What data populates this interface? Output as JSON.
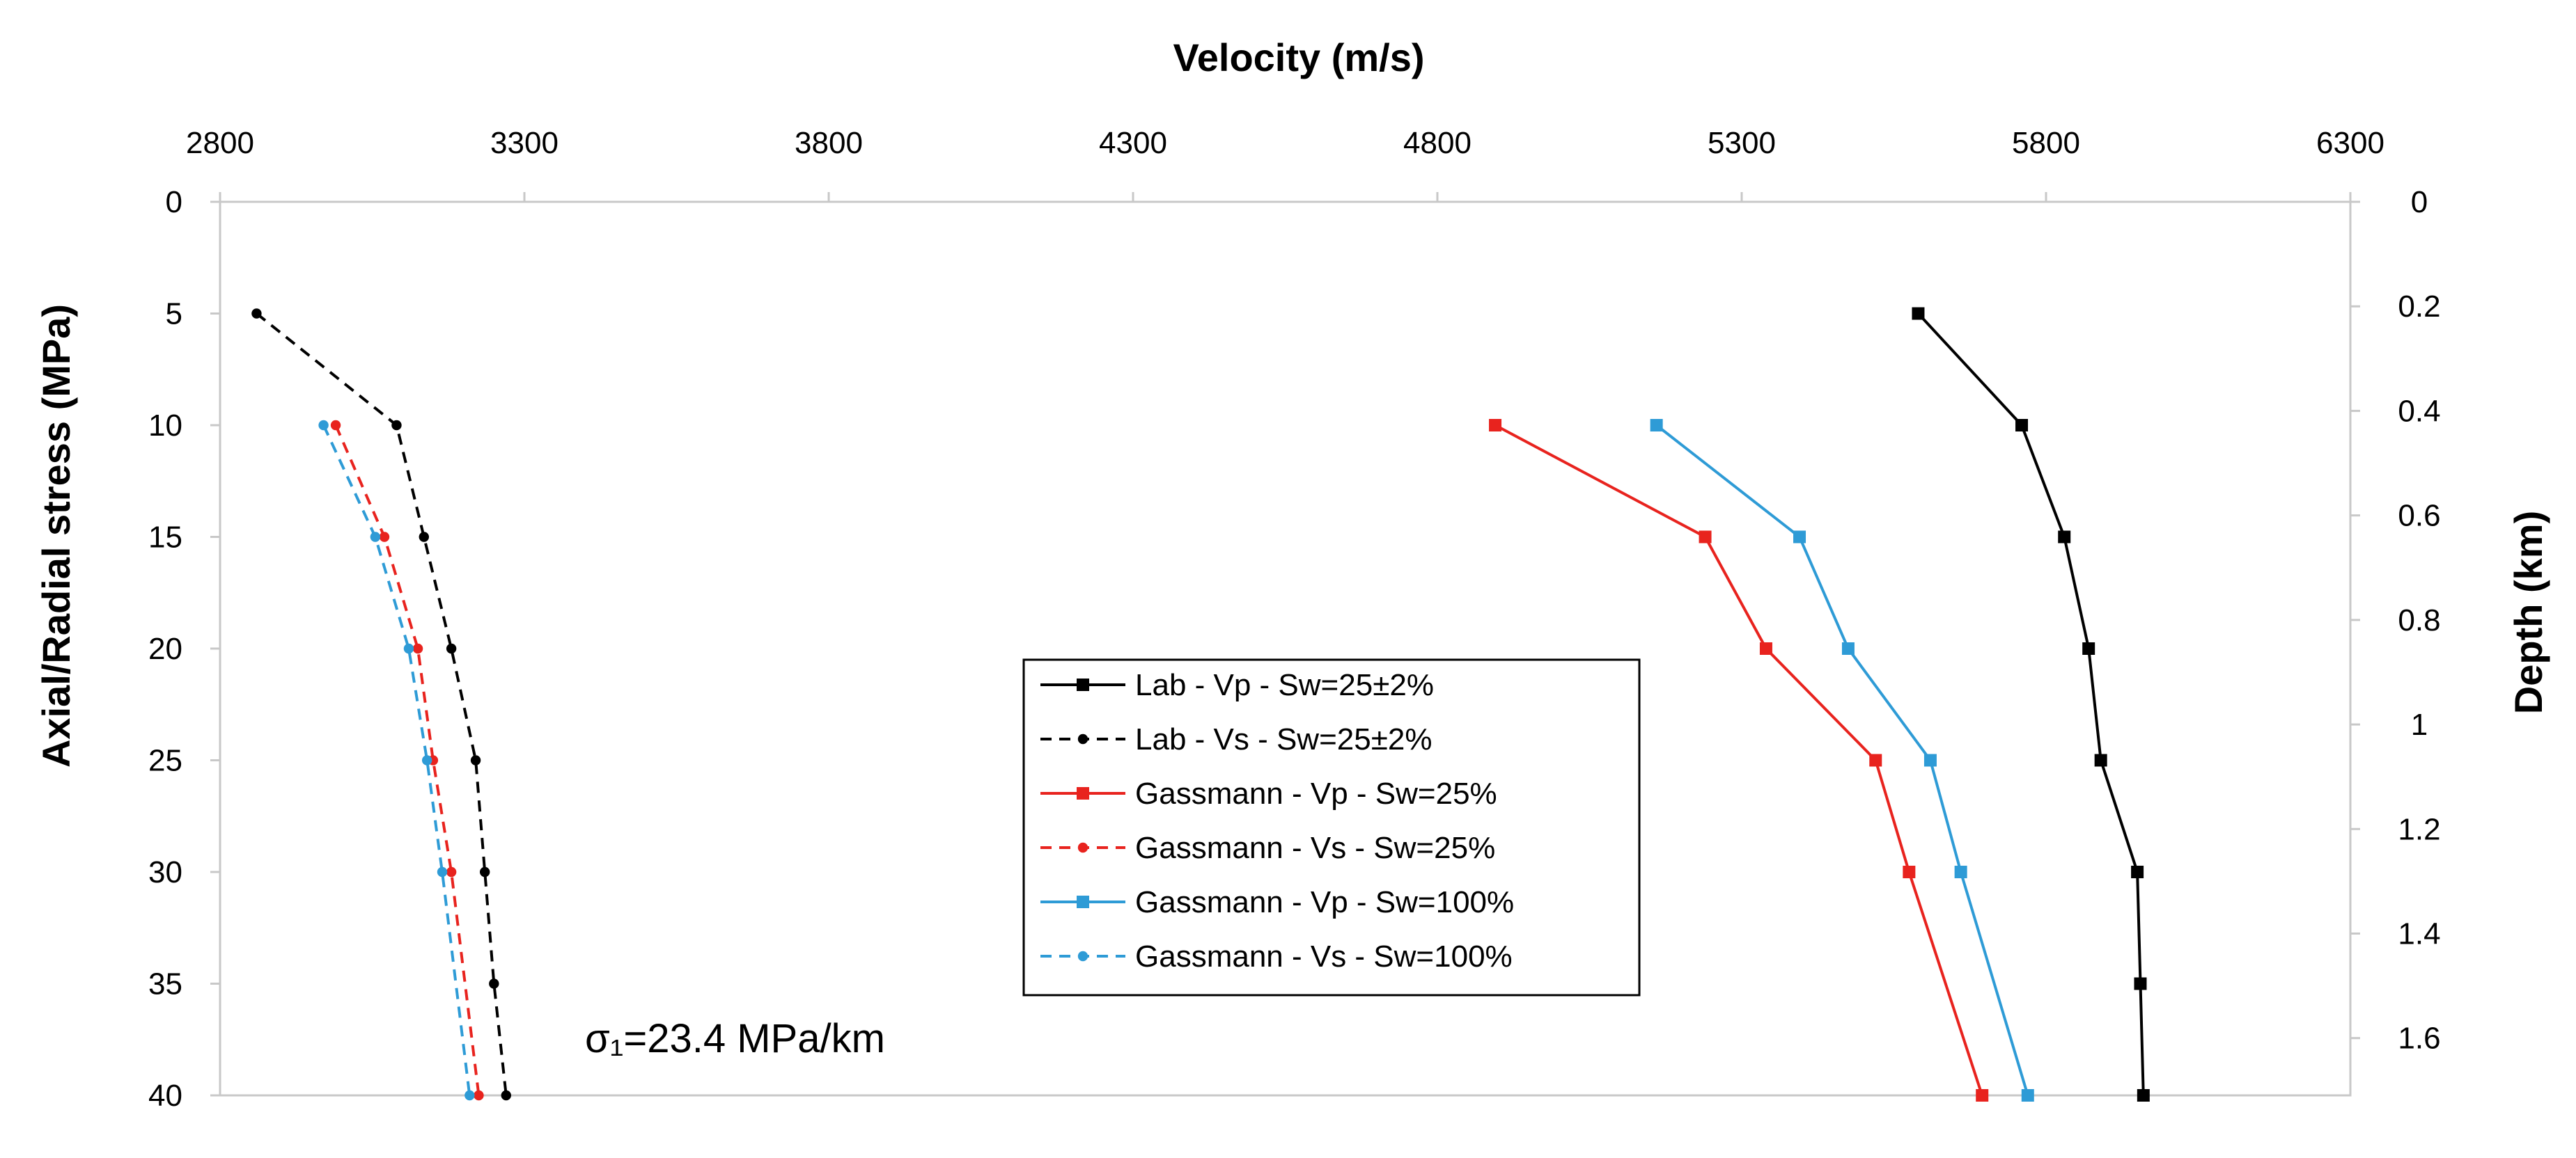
{
  "chart_data": {
    "type": "line",
    "title": "",
    "xlabel": "Velocity (m/s)",
    "ylabel": "Axial/Radial stress (MPa)",
    "y2label": "Depth (km)",
    "xlim": [
      2800,
      6300
    ],
    "ylim": [
      0,
      40
    ],
    "y_inverted": true,
    "xticks": [
      "2800",
      "3300",
      "3800",
      "4300",
      "4800",
      "5300",
      "5800",
      "6300"
    ],
    "yticks": [
      "0",
      "5",
      "10",
      "15",
      "20",
      "25",
      "30",
      "35",
      "40"
    ],
    "y2ticks": [
      "0",
      "0.2",
      "0.4",
      "0.6",
      "0.8",
      "1",
      "1.2",
      "1.4",
      "1.6"
    ],
    "y2_per_mpa": 0.04274,
    "grid": false,
    "legend_position": "center",
    "annotation": "σ₁=23.4 MPa/km",
    "series": [
      {
        "name": "Lab - Vp - Sw=25±2%",
        "color": "#000000",
        "dash": "solid",
        "marker": "square",
        "x": [
          5590,
          5760,
          5830,
          5870,
          5890,
          5950,
          5955,
          5960
        ],
        "y": [
          5,
          10,
          15,
          20,
          25,
          30,
          35,
          40
        ]
      },
      {
        "name": "Lab - Vs - Sw=25±2%",
        "color": "#000000",
        "dash": "dashed",
        "marker": "dot",
        "x": [
          2860,
          3090,
          3135,
          3180,
          3220,
          3235,
          3250,
          3270
        ],
        "y": [
          5,
          10,
          15,
          20,
          25,
          30,
          35,
          40
        ]
      },
      {
        "name": "Gassmann - Vp - Sw=25%",
        "color": "#e8231e",
        "dash": "solid",
        "marker": "square",
        "x": [
          4895,
          5240,
          5340,
          5520,
          5575,
          5695
        ],
        "y": [
          10,
          15,
          20,
          25,
          30,
          40
        ]
      },
      {
        "name": "Gassmann - Vs - Sw=25%",
        "color": "#e8231e",
        "dash": "dashed",
        "marker": "dot",
        "x": [
          2990,
          3070,
          3125,
          3150,
          3180,
          3225
        ],
        "y": [
          10,
          15,
          20,
          25,
          30,
          40
        ]
      },
      {
        "name": "Gassmann - Vp - Sw=100%",
        "color": "#2e9bd6",
        "dash": "solid",
        "marker": "square",
        "x": [
          5160,
          5395,
          5475,
          5610,
          5660,
          5770
        ],
        "y": [
          10,
          15,
          20,
          25,
          30,
          40
        ]
      },
      {
        "name": "Gassmann - Vs - Sw=100%",
        "color": "#2e9bd6",
        "dash": "dashed",
        "marker": "dot",
        "x": [
          2970,
          3055,
          3110,
          3140,
          3165,
          3210
        ],
        "y": [
          10,
          15,
          20,
          25,
          30,
          40
        ]
      }
    ]
  }
}
